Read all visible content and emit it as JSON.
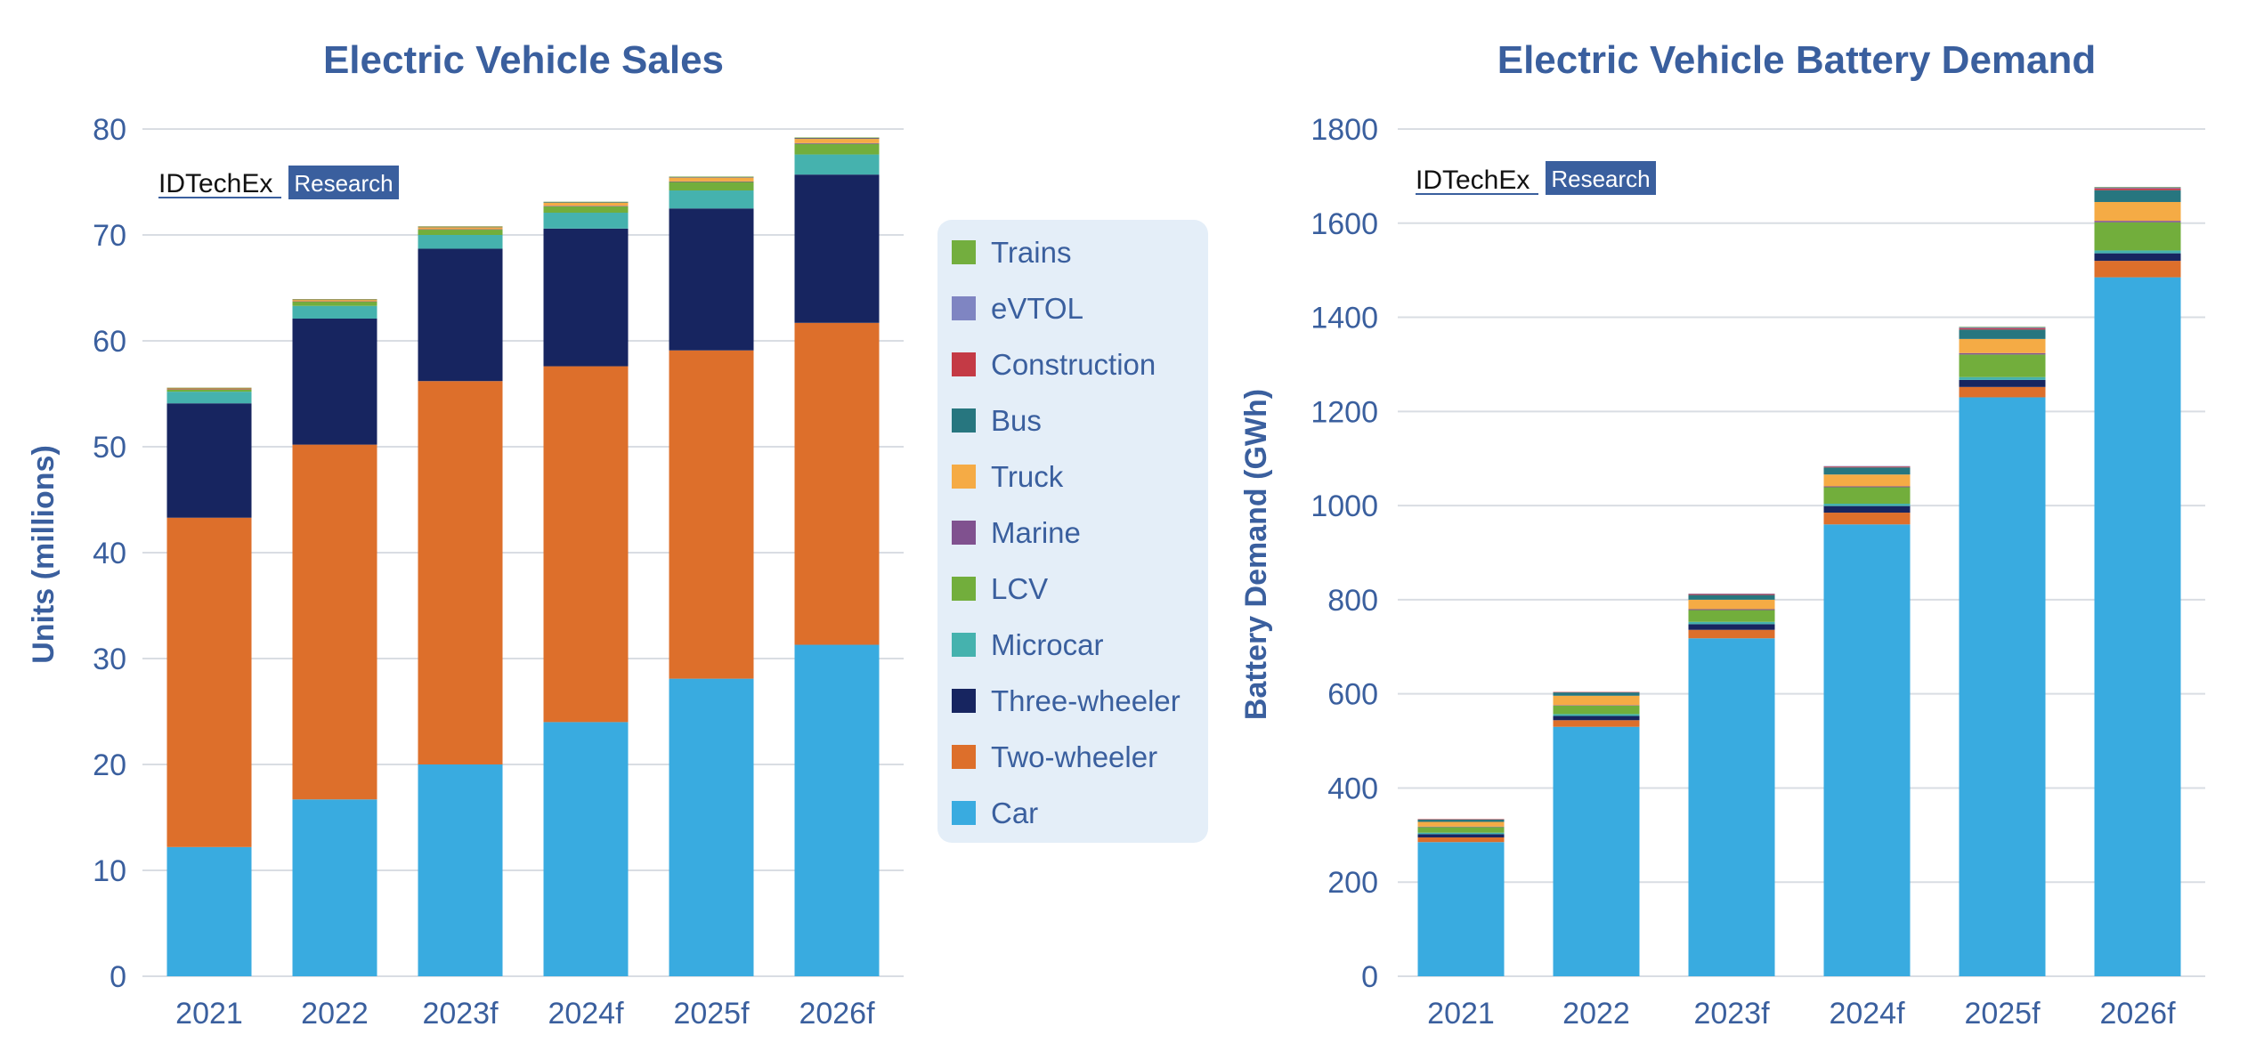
{
  "colors": {
    "Car": "#39abe0",
    "Two-wheeler": "#dd6f2b",
    "Three-wheeler": "#172560",
    "Microcar": "#45b2ae",
    "LCV": "#72ae3c",
    "Marine": "#80518f",
    "Truck": "#f5ab45",
    "Bus": "#27767f",
    "Construction": "#c43a45",
    "eVTOL": "#7f85c2",
    "Trains": "#73ae3e"
  },
  "legend": {
    "items": [
      "Trains",
      "eVTOL",
      "Construction",
      "Bus",
      "Truck",
      "Marine",
      "LCV",
      "Microcar",
      "Three-wheeler",
      "Two-wheeler",
      "Car"
    ]
  },
  "chart_data": [
    {
      "type": "bar",
      "stacked": true,
      "title": "Electric Vehicle Sales",
      "xlabel": "",
      "ylabel": "Units (millions)",
      "ylim": [
        0,
        80
      ],
      "yticks": [
        0,
        10,
        20,
        30,
        40,
        50,
        60,
        70,
        80
      ],
      "logo": {
        "brand": "IDTechEx",
        "tag": "Research"
      },
      "categories": [
        "2021",
        "2022",
        "2023f",
        "2024f",
        "2025f",
        "2026f"
      ],
      "series": [
        {
          "name": "Car",
          "values": [
            12.2,
            16.7,
            20.0,
            24.0,
            28.1,
            31.3
          ]
        },
        {
          "name": "Two-wheeler",
          "values": [
            31.1,
            33.5,
            36.2,
            33.6,
            31.0,
            30.4
          ]
        },
        {
          "name": "Three-wheeler",
          "values": [
            10.8,
            11.9,
            12.5,
            13.0,
            13.4,
            14.0
          ]
        },
        {
          "name": "Microcar",
          "values": [
            1.1,
            1.2,
            1.3,
            1.5,
            1.7,
            1.9
          ]
        },
        {
          "name": "LCV",
          "values": [
            0.2,
            0.4,
            0.5,
            0.6,
            0.8,
            1.0
          ]
        },
        {
          "name": "Marine",
          "values": [
            0.02,
            0.03,
            0.04,
            0.05,
            0.06,
            0.07
          ]
        },
        {
          "name": "Truck",
          "values": [
            0.1,
            0.15,
            0.2,
            0.3,
            0.35,
            0.4
          ]
        },
        {
          "name": "Bus",
          "values": [
            0.02,
            0.02,
            0.03,
            0.03,
            0.04,
            0.05
          ]
        },
        {
          "name": "Construction",
          "values": [
            0.02,
            0.02,
            0.03,
            0.03,
            0.04,
            0.05
          ]
        },
        {
          "name": "eVTOL",
          "values": [
            0.0,
            0.0,
            0.0,
            0.01,
            0.01,
            0.02
          ]
        },
        {
          "name": "Trains",
          "values": [
            0.01,
            0.01,
            0.01,
            0.01,
            0.01,
            0.01
          ]
        }
      ]
    },
    {
      "type": "bar",
      "stacked": true,
      "title": "Electric Vehicle Battery Demand",
      "xlabel": "",
      "ylabel": "Battery Demand (GWh)",
      "ylim": [
        0,
        1800
      ],
      "yticks": [
        0,
        200,
        400,
        600,
        800,
        1000,
        1200,
        1400,
        1600,
        1800
      ],
      "logo": {
        "brand": "IDTechEx",
        "tag": "Research"
      },
      "categories": [
        "2021",
        "2022",
        "2023f",
        "2024f",
        "2025f",
        "2026f"
      ],
      "series": [
        {
          "name": "Car",
          "values": [
            285,
            530,
            718,
            960,
            1230,
            1485
          ]
        },
        {
          "name": "Two-wheeler",
          "values": [
            10,
            14,
            18,
            25,
            22,
            35
          ]
        },
        {
          "name": "Three-wheeler",
          "values": [
            7,
            9,
            12,
            14,
            15,
            16
          ]
        },
        {
          "name": "Microcar",
          "values": [
            3,
            4,
            5,
            5,
            6,
            6
          ]
        },
        {
          "name": "LCV",
          "values": [
            12,
            18,
            25,
            35,
            48,
            60
          ]
        },
        {
          "name": "Marine",
          "values": [
            1,
            1,
            2,
            2,
            3,
            3
          ]
        },
        {
          "name": "Truck",
          "values": [
            10,
            20,
            20,
            25,
            30,
            40
          ]
        },
        {
          "name": "Bus",
          "values": [
            5,
            7,
            10,
            15,
            20,
            25
          ]
        },
        {
          "name": "Construction",
          "values": [
            1,
            1,
            2,
            2,
            3,
            4
          ]
        },
        {
          "name": "eVTOL",
          "values": [
            0,
            0,
            1,
            1,
            2,
            2
          ]
        },
        {
          "name": "Trains",
          "values": [
            0,
            0,
            0,
            0,
            1,
            1
          ]
        }
      ]
    }
  ]
}
